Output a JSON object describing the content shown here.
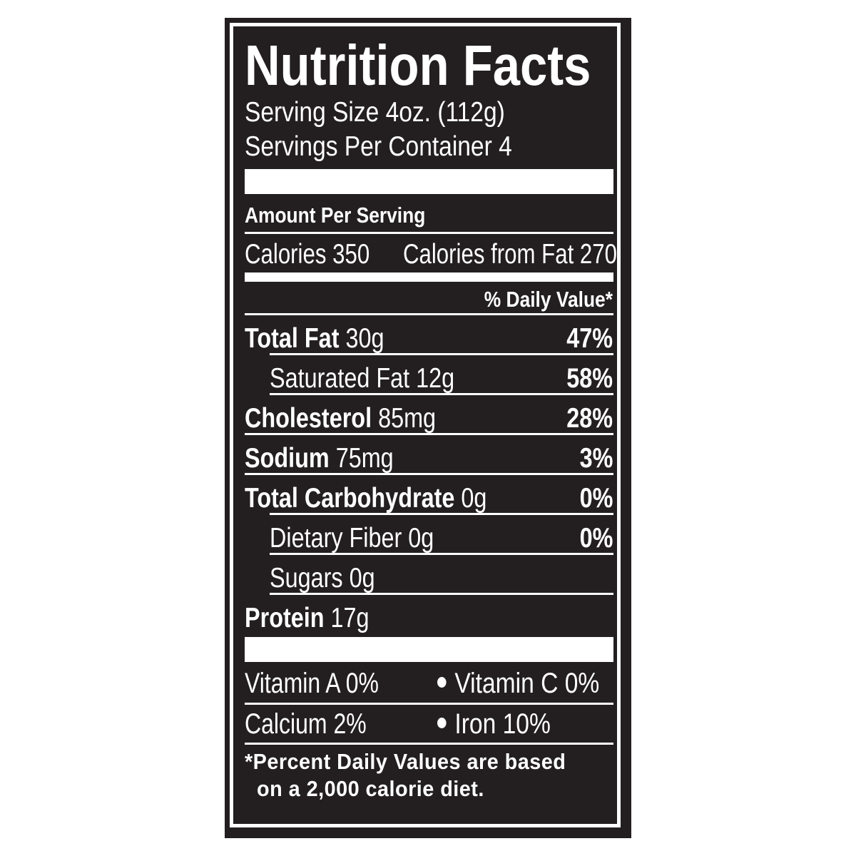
{
  "title": "Nutrition Facts",
  "serving_size": "Serving Size 4oz. (112g)",
  "servings_per_container": "Servings Per Container 4",
  "amount_per_serving": "Amount Per Serving",
  "calories": "Calories 350",
  "calories_from_fat": "Calories from Fat 270",
  "daily_value_header": "% Daily Value*",
  "nutrients": [
    {
      "label": "Total Fat",
      "amount": "30g",
      "dv": "47%",
      "indent": false
    },
    {
      "label": "Saturated Fat",
      "amount": "12g",
      "dv": "58%",
      "indent": true
    },
    {
      "label": "Cholesterol",
      "amount": "85mg",
      "dv": "28%",
      "indent": false
    },
    {
      "label": "Sodium",
      "amount": "75mg",
      "dv": "3%",
      "indent": false
    },
    {
      "label": "Total Carbohydrate",
      "amount": "0g",
      "dv": "0%",
      "indent": false
    },
    {
      "label": "Dietary Fiber",
      "amount": "0g",
      "dv": "0%",
      "indent": true
    },
    {
      "label": "Sugars",
      "amount": "0g",
      "dv": "",
      "indent": true
    },
    {
      "label": "Protein",
      "amount": "17g",
      "dv": "",
      "indent": false
    }
  ],
  "vitamins": {
    "vitamin_a": "Vitamin A 0%",
    "vitamin_c": "Vitamin C 0%",
    "calcium": "Calcium 2%",
    "iron": "Iron 10%"
  },
  "footnote": [
    "*Percent Daily Values are based",
    "on a 2,000 calorie diet."
  ],
  "colors": {
    "background": "#231f20",
    "text": "#ffffff"
  }
}
